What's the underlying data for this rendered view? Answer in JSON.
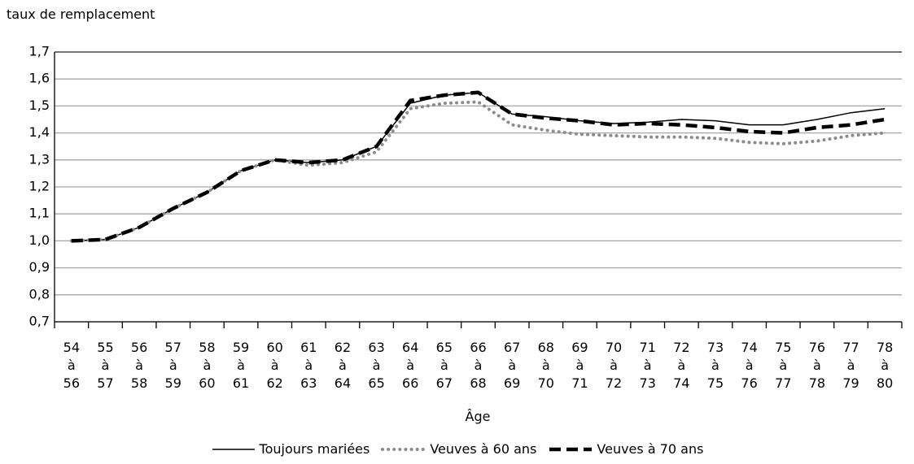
{
  "chart_data": {
    "type": "line",
    "y_axis_title": "taux de remplacement",
    "x_axis_title": "Âge",
    "categories": [
      "54 à 56",
      "55 à 57",
      "56 à 58",
      "57 à 59",
      "58 à 60",
      "59 à 61",
      "60 à 62",
      "61 à 63",
      "62 à 64",
      "63 à 65",
      "64 à 66",
      "65 à 67",
      "66 à 68",
      "67 à 69",
      "68 à 70",
      "69 à 71",
      "70 à 72",
      "71 à 73",
      "72 à 74",
      "73 à 75",
      "74 à 76",
      "75 à 77",
      "76 à 78",
      "77 à 79",
      "78 à 80"
    ],
    "series": [
      {
        "name": "Toujours mariées",
        "color": "#000000",
        "style": "solid",
        "values": [
          1.0,
          1.005,
          1.05,
          1.12,
          1.18,
          1.26,
          1.3,
          1.29,
          1.3,
          1.35,
          1.51,
          1.54,
          1.55,
          1.47,
          1.46,
          1.445,
          1.435,
          1.44,
          1.45,
          1.445,
          1.43,
          1.43,
          1.45,
          1.475,
          1.49
        ]
      },
      {
        "name": "Veuves à 60 ans",
        "color": "#8c8c8c",
        "style": "dotted",
        "values": [
          1.0,
          1.005,
          1.05,
          1.12,
          1.18,
          1.26,
          1.3,
          1.28,
          1.29,
          1.33,
          1.49,
          1.51,
          1.515,
          1.43,
          1.41,
          1.395,
          1.39,
          1.385,
          1.385,
          1.38,
          1.365,
          1.36,
          1.37,
          1.39,
          1.4
        ]
      },
      {
        "name": "Veuves à 70 ans",
        "color": "#000000",
        "style": "dashed",
        "values": [
          1.0,
          1.005,
          1.05,
          1.12,
          1.18,
          1.26,
          1.3,
          1.29,
          1.3,
          1.35,
          1.52,
          1.54,
          1.55,
          1.47,
          1.455,
          1.445,
          1.43,
          1.435,
          1.43,
          1.42,
          1.405,
          1.4,
          1.42,
          1.43,
          1.45
        ]
      }
    ],
    "ylim": [
      0.7,
      1.7
    ],
    "yticks": [
      {
        "value": 0.7,
        "label": "0,7"
      },
      {
        "value": 0.8,
        "label": "0,8"
      },
      {
        "value": 0.9,
        "label": "0,9"
      },
      {
        "value": 1.0,
        "label": "1,0"
      },
      {
        "value": 1.1,
        "label": "1,1"
      },
      {
        "value": 1.2,
        "label": "1,2"
      },
      {
        "value": 1.3,
        "label": "1,3"
      },
      {
        "value": 1.4,
        "label": "1,4"
      },
      {
        "value": 1.5,
        "label": "1,5"
      },
      {
        "value": 1.6,
        "label": "1,6"
      },
      {
        "value": 1.7,
        "label": "1,7"
      }
    ],
    "grid": true,
    "legend": "bottom"
  }
}
